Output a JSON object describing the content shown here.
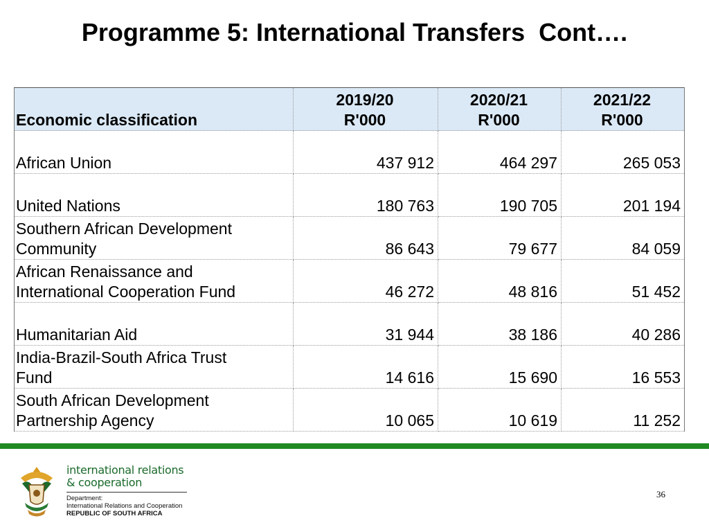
{
  "slide": {
    "title": "Programme 5: International Transfers  Cont….",
    "page_number": "36"
  },
  "table": {
    "header": {
      "label": "Economic classification",
      "columns": [
        {
          "year": "2019/20",
          "unit": "R'000"
        },
        {
          "year": "2020/21",
          "unit": "R'000"
        },
        {
          "year": "2021/22",
          "unit": "R'000"
        }
      ]
    },
    "rows": [
      {
        "line1": "",
        "line2": "African Union",
        "values": [
          "437 912",
          "464 297",
          "265 053"
        ]
      },
      {
        "line1": "",
        "line2": "United Nations",
        "values": [
          "180 763",
          "190 705",
          "201 194"
        ]
      },
      {
        "line1": "Southern African Development",
        "line2": "Community",
        "values": [
          "86 643",
          "79 677",
          "84 059"
        ]
      },
      {
        "line1": "African Renaissance and",
        "line2": "International Cooperation Fund",
        "values": [
          "46 272",
          "48 816",
          "51 452"
        ]
      },
      {
        "line1": "",
        "line2": "Humanitarian Aid",
        "values": [
          "31 944",
          "38 186",
          "40 286"
        ]
      },
      {
        "line1": "India-Brazil-South Africa Trust",
        "line2": "Fund",
        "values": [
          "14 616",
          "15 690",
          "16 553"
        ]
      },
      {
        "line1": "South African Development",
        "line2": "Partnership Agency",
        "values": [
          "10 065",
          "10 619",
          "11 252"
        ]
      }
    ]
  },
  "footer": {
    "brand_line1": "international relations",
    "brand_line2": "& cooperation",
    "dept_line1": "Department:",
    "dept_line2": "International Relations and Cooperation",
    "dept_line3": "REPUBLIC OF SOUTH AFRICA",
    "crest_icon": "coat-of-arms-icon",
    "accent_color": "#1f8a22",
    "header_fill": "#dbe9f6"
  }
}
